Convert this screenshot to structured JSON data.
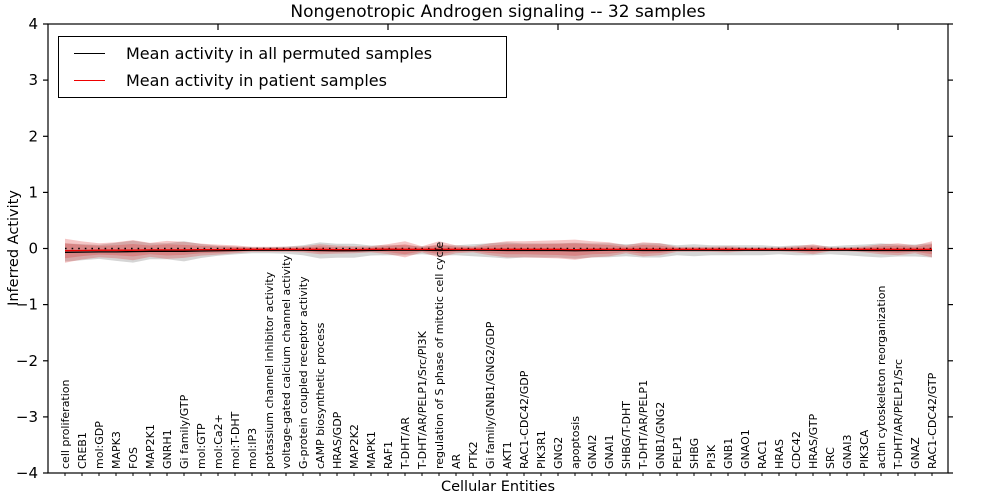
{
  "chart_data": {
    "type": "line",
    "title": "Nongenotropic Androgen signaling -- 32 samples",
    "xlabel": "Cellular Entities",
    "ylabel": "Inferred Activity",
    "ylim": [
      -4,
      4
    ],
    "yticks": [
      4,
      3,
      2,
      1,
      0,
      -1,
      -2,
      -3,
      -4
    ],
    "xticks_top": [
      10,
      20,
      30,
      40,
      50
    ],
    "grid": false,
    "zero_reference_line": 0,
    "legend_position": "upper left",
    "legend": [
      {
        "label": "Mean activity in all permuted samples",
        "color": "#000000"
      },
      {
        "label": "Mean activity in patient samples",
        "color": "#ee0000"
      }
    ],
    "categories": [
      "cell proliferation",
      "CREB1",
      "mol:GDP",
      "MAPK3",
      "FOS",
      "MAP2K1",
      "GNRH1",
      "Gi family/GTP",
      "mol:GTP",
      "mol:Ca2+",
      "mol:T-DHT",
      "mol:IP3",
      "potassium channel inhibitor activity",
      "voltage-gated calcium channel activity",
      "G-protein coupled receptor activity",
      "cAMP biosynthetic process",
      "HRAS/GDP",
      "MAP2K2",
      "MAPK1",
      "RAF1",
      "T-DHT/AR",
      "T-DHT/AR/PELP1/Src/PI3K",
      "regulation of S phase of mitotic cell cycle",
      "AR",
      "PTK2",
      "Gi family/GNB1/GNG2/GDP",
      "AKT1",
      "RAC1-CDC42/GDP",
      "PIK3R1",
      "GNG2",
      "apoptosis",
      "GNAI2",
      "GNAI1",
      "SHBG/T-DHT",
      "T-DHT/AR/PELP1",
      "GNB1/GNG2",
      "PELP1",
      "SHBG",
      "PI3K",
      "GNB1",
      "GNAO1",
      "RAC1",
      "HRAS",
      "CDC42",
      "HRAS/GTP",
      "SRC",
      "GNAI3",
      "PIK3CA",
      "actin cytoskeleton reorganization",
      "T-DHT/AR/PELP1/Src",
      "GNAZ",
      "RAC1-CDC42/GTP"
    ],
    "series": [
      {
        "name": "Mean activity in all permuted samples",
        "color": "#000000",
        "values": [
          -0.07,
          -0.065,
          -0.06,
          -0.06,
          -0.055,
          -0.05,
          -0.05,
          -0.05,
          -0.045,
          -0.04,
          -0.035,
          -0.03,
          -0.03,
          -0.03,
          -0.03,
          -0.035,
          -0.04,
          -0.04,
          -0.035,
          -0.03,
          -0.03,
          -0.03,
          -0.035,
          -0.03,
          -0.03,
          -0.03,
          -0.035,
          -0.035,
          -0.035,
          -0.035,
          -0.04,
          -0.035,
          -0.03,
          -0.03,
          -0.035,
          -0.035,
          -0.03,
          -0.03,
          -0.03,
          -0.03,
          -0.03,
          -0.03,
          -0.03,
          -0.03,
          -0.03,
          -0.03,
          -0.03,
          -0.035,
          -0.035,
          -0.035,
          -0.035,
          -0.035
        ]
      },
      {
        "name": "Mean activity in patient samples",
        "color": "#ee0000",
        "values": [
          -0.04,
          -0.035,
          -0.03,
          -0.03,
          -0.03,
          -0.025,
          -0.025,
          -0.025,
          -0.02,
          -0.02,
          -0.015,
          -0.015,
          -0.015,
          -0.015,
          -0.015,
          -0.015,
          -0.02,
          -0.02,
          -0.015,
          -0.01,
          -0.015,
          -0.015,
          -0.015,
          -0.015,
          -0.015,
          -0.015,
          -0.015,
          -0.015,
          -0.015,
          -0.015,
          -0.02,
          -0.015,
          -0.015,
          -0.015,
          -0.015,
          -0.015,
          -0.015,
          -0.015,
          -0.015,
          -0.015,
          -0.015,
          -0.015,
          -0.015,
          -0.015,
          -0.015,
          -0.015,
          -0.015,
          -0.015,
          -0.015,
          -0.015,
          -0.015,
          -0.015
        ]
      }
    ],
    "bands": {
      "permuted": {
        "color": "#888888",
        "alpha": 0.35,
        "half_width": [
          0.161,
          0.143,
          0.125,
          0.161,
          0.196,
          0.143,
          0.143,
          0.179,
          0.125,
          0.089,
          0.071,
          0.054,
          0.054,
          0.063,
          0.089,
          0.143,
          0.125,
          0.125,
          0.089,
          0.089,
          0.089,
          0.071,
          0.089,
          0.089,
          0.107,
          0.125,
          0.143,
          0.125,
          0.125,
          0.125,
          0.143,
          0.125,
          0.125,
          0.107,
          0.125,
          0.125,
          0.089,
          0.107,
          0.089,
          0.089,
          0.089,
          0.089,
          0.071,
          0.089,
          0.089,
          0.071,
          0.089,
          0.107,
          0.125,
          0.107,
          0.107,
          0.125
        ]
      },
      "patient_outer": {
        "color": "#d92b2b",
        "alpha": 0.27,
        "half_width": [
          0.214,
          0.161,
          0.125,
          0.143,
          0.179,
          0.125,
          0.161,
          0.143,
          0.107,
          0.089,
          0.071,
          0.045,
          0.045,
          0.045,
          0.054,
          0.089,
          0.071,
          0.063,
          0.054,
          0.089,
          0.143,
          0.054,
          0.143,
          0.071,
          0.054,
          0.107,
          0.143,
          0.143,
          0.152,
          0.161,
          0.179,
          0.143,
          0.125,
          0.071,
          0.125,
          0.107,
          0.045,
          0.045,
          0.045,
          0.054,
          0.036,
          0.036,
          0.036,
          0.054,
          0.089,
          0.036,
          0.036,
          0.054,
          0.089,
          0.107,
          0.071,
          0.143
        ]
      },
      "patient_inner": {
        "color": "#d92b2b",
        "alpha": 0.27,
        "half_width": [
          0.134,
          0.1,
          0.078,
          0.089,
          0.111,
          0.078,
          0.1,
          0.089,
          0.066,
          0.055,
          0.044,
          0.028,
          0.028,
          0.028,
          0.033,
          0.055,
          0.044,
          0.039,
          0.033,
          0.055,
          0.089,
          0.033,
          0.089,
          0.044,
          0.033,
          0.066,
          0.089,
          0.089,
          0.094,
          0.1,
          0.111,
          0.089,
          0.078,
          0.044,
          0.078,
          0.066,
          0.028,
          0.028,
          0.028,
          0.033,
          0.022,
          0.022,
          0.022,
          0.033,
          0.055,
          0.022,
          0.022,
          0.033,
          0.055,
          0.066,
          0.044,
          0.089
        ]
      }
    }
  }
}
